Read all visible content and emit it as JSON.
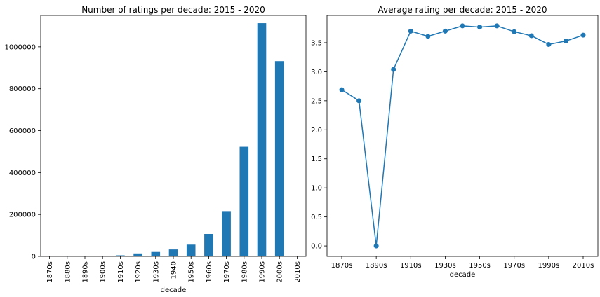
{
  "chart_data": [
    {
      "type": "bar",
      "title": "Number of ratings per decade: 2015 - 2020",
      "xlabel": "decade",
      "ylabel": "",
      "categories": [
        "1870s",
        "1880s",
        "1890s",
        "1900s",
        "1910s",
        "1920s",
        "1930s",
        "1940",
        "1950s",
        "1960s",
        "1970s",
        "1980s",
        "1990s",
        "2000s",
        "2010s"
      ],
      "values": [
        200,
        300,
        100,
        800,
        5000,
        14000,
        21000,
        33000,
        56000,
        107000,
        216000,
        523000,
        1113000,
        932000,
        3000
      ],
      "ylim": [
        0,
        1150000
      ],
      "yticks": [
        0,
        200000,
        400000,
        600000,
        800000,
        1000000
      ],
      "color": "#1f77b4",
      "grid": false
    },
    {
      "type": "line",
      "title": "Average rating per decade: 2015 - 2020",
      "xlabel": "decade",
      "ylabel": "",
      "x": [
        "1870s",
        "1880s",
        "1890s",
        "1900s",
        "1910s",
        "1920s",
        "1930s",
        "1940s",
        "1950s",
        "1960s",
        "1970s",
        "1980s",
        "1990s",
        "2000s",
        "2010s"
      ],
      "xtick_labels": [
        "1870s",
        "1890s",
        "1910s",
        "1930s",
        "1950s",
        "1970s",
        "1990s",
        "2010s"
      ],
      "values": [
        2.69,
        2.5,
        0.0,
        3.04,
        3.7,
        3.61,
        3.7,
        3.79,
        3.77,
        3.79,
        3.69,
        3.62,
        3.47,
        3.53,
        3.63
      ],
      "ylim": [
        -0.18,
        3.97
      ],
      "yticks": [
        0.0,
        0.5,
        1.0,
        1.5,
        2.0,
        2.5,
        3.0,
        3.5
      ],
      "ytick_labels": [
        "0.0",
        "0.5",
        "1.0",
        "1.5",
        "2.0",
        "2.5",
        "3.0",
        "3.5"
      ],
      "color": "#1f77b4",
      "marker": "circle",
      "grid": false
    }
  ]
}
